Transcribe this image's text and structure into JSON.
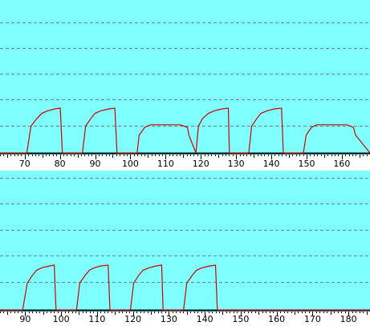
{
  "colors": {
    "plot_background": "#80FFFF",
    "grid": "#6a8a8a",
    "series": "#CC0000",
    "baseline": "#000000",
    "axis_strip": "#ffffff"
  },
  "chart_data": [
    {
      "type": "line",
      "grid": true,
      "xlim": [
        63,
        168
      ],
      "ylim": [
        -0.2,
        5.6
      ],
      "xticks": [
        70,
        80,
        90,
        100,
        110,
        120,
        130,
        140,
        150,
        160
      ],
      "tick_labels": [
        "70",
        "80",
        "90",
        "100",
        "110",
        "120",
        "130",
        "140",
        "150",
        "160"
      ],
      "series": [
        {
          "x": [
            63,
            70.6,
            71.8,
            73.5,
            74.9,
            76.6,
            78.6,
            80.1,
            80.7,
            86.4,
            87.3,
            88.8,
            90.0,
            91.7,
            93.9,
            95.6,
            96.2,
            101.9,
            102.5,
            104.1,
            105.7,
            110.4,
            114.1,
            116.2,
            116.6,
            118.6,
            119.3,
            120.5,
            122.2,
            123.9,
            126.0,
            127.8,
            128.1,
            133.6,
            134.4,
            135.9,
            137.1,
            138.9,
            140.9,
            142.9,
            143.4,
            149.1,
            149.9,
            151.4,
            152.9,
            158.2,
            161.4,
            163.3,
            163.9,
            168
          ],
          "y": [
            0,
            0,
            1.05,
            1.35,
            1.55,
            1.65,
            1.72,
            1.75,
            0,
            0,
            1.05,
            1.35,
            1.55,
            1.65,
            1.72,
            1.75,
            0,
            0,
            0.7,
            1.0,
            1.1,
            1.1,
            1.1,
            1.0,
            0.7,
            0,
            1.05,
            1.35,
            1.55,
            1.65,
            1.72,
            1.75,
            0,
            0,
            1.05,
            1.35,
            1.55,
            1.65,
            1.72,
            1.75,
            0,
            0,
            0.7,
            1.0,
            1.1,
            1.1,
            1.1,
            1.0,
            0.7,
            0
          ]
        }
      ]
    },
    {
      "type": "line",
      "grid": true,
      "xlim": [
        83,
        186
      ],
      "ylim": [
        -0.2,
        5.6
      ],
      "xticks": [
        90,
        100,
        110,
        120,
        130,
        140,
        150,
        160,
        170,
        180
      ],
      "tick_labels": [
        "90",
        "100",
        "110",
        "120",
        "130",
        "140",
        "150",
        "160",
        "170",
        "180"
      ],
      "series": [
        {
          "x": [
            83,
            89.3,
            90.6,
            92.0,
            93.2,
            94.7,
            96.8,
            98.1,
            98.6,
            104.3,
            105.2,
            106.7,
            107.9,
            109.3,
            111.1,
            113.1,
            113.6,
            119.3,
            120.2,
            121.6,
            122.8,
            124.6,
            126.5,
            128.0,
            128.4,
            134.1,
            135.0,
            136.5,
            137.7,
            139.3,
            141.4,
            143.0,
            143.5,
            186
          ],
          "y": [
            0,
            0,
            1.05,
            1.35,
            1.55,
            1.65,
            1.72,
            1.75,
            0,
            0,
            1.05,
            1.35,
            1.55,
            1.65,
            1.72,
            1.75,
            0,
            0,
            1.05,
            1.35,
            1.55,
            1.65,
            1.72,
            1.75,
            0,
            0,
            1.05,
            1.35,
            1.55,
            1.65,
            1.72,
            1.75,
            0,
            0
          ]
        }
      ]
    }
  ]
}
